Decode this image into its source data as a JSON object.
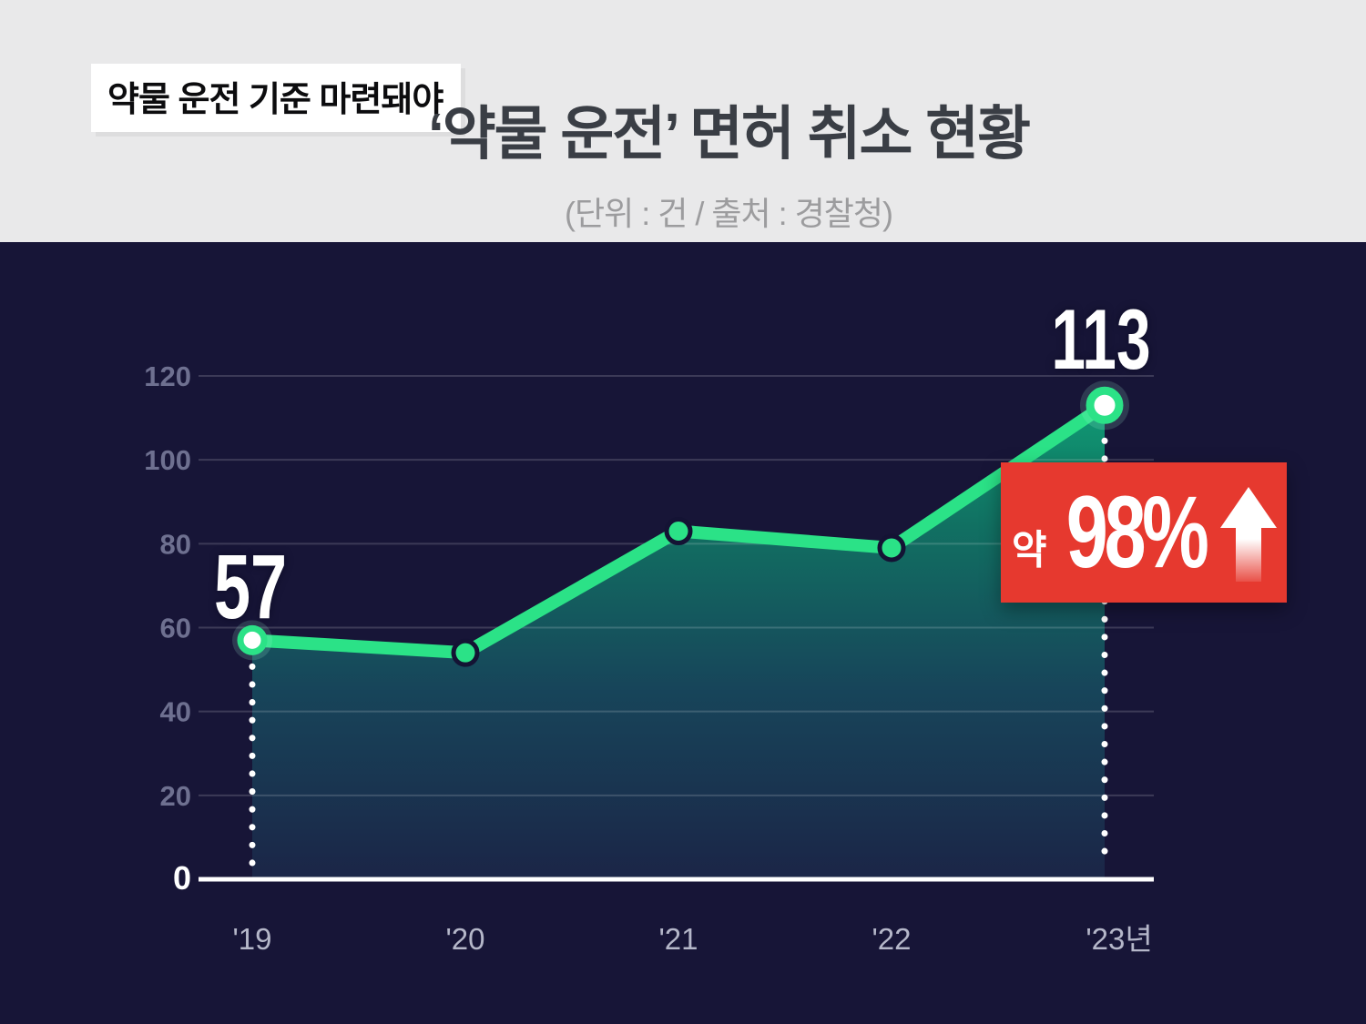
{
  "header": {
    "badge": "약물 운전 기준 마련돼야",
    "title": "‘약물 운전’ 면허 취소 현황",
    "subtitle": "(단위 : 건 / 출처 : 경찰청)"
  },
  "annotations": {
    "first_point_value": "57",
    "last_point_value": "113",
    "change_prefix": "약",
    "change_value": "98%",
    "change_direction": "up"
  },
  "chart_data": {
    "type": "line",
    "title": "‘약물 운전’ 면허 취소 현황",
    "unit": "건",
    "source": "경찰청",
    "categories": [
      "'19",
      "'20",
      "'21",
      "'22",
      "'23년"
    ],
    "values": [
      57,
      54,
      83,
      79,
      113
    ],
    "ylim": [
      0,
      120
    ],
    "yticks": [
      0,
      20,
      40,
      60,
      80,
      100,
      120
    ],
    "grid": true,
    "legend_position": "none",
    "highlighted_points": [
      "'19",
      "'23년"
    ],
    "change_annotation": "약 98%↑"
  },
  "colors": {
    "background": "#171537",
    "header_background": "#e9e9ea",
    "title_text": "#3a3e45",
    "subtitle_text": "#9c9c9e",
    "kicker_background": "#ffffff",
    "kicker_text": "#0c0c0e",
    "line_green": "#2be287",
    "badge_red": "#e6392f",
    "axis_white": "#ffffff",
    "ytick_text": "#6e7090",
    "xtick_text": "#b5b7c9",
    "point_ring_navy": "#141334"
  }
}
